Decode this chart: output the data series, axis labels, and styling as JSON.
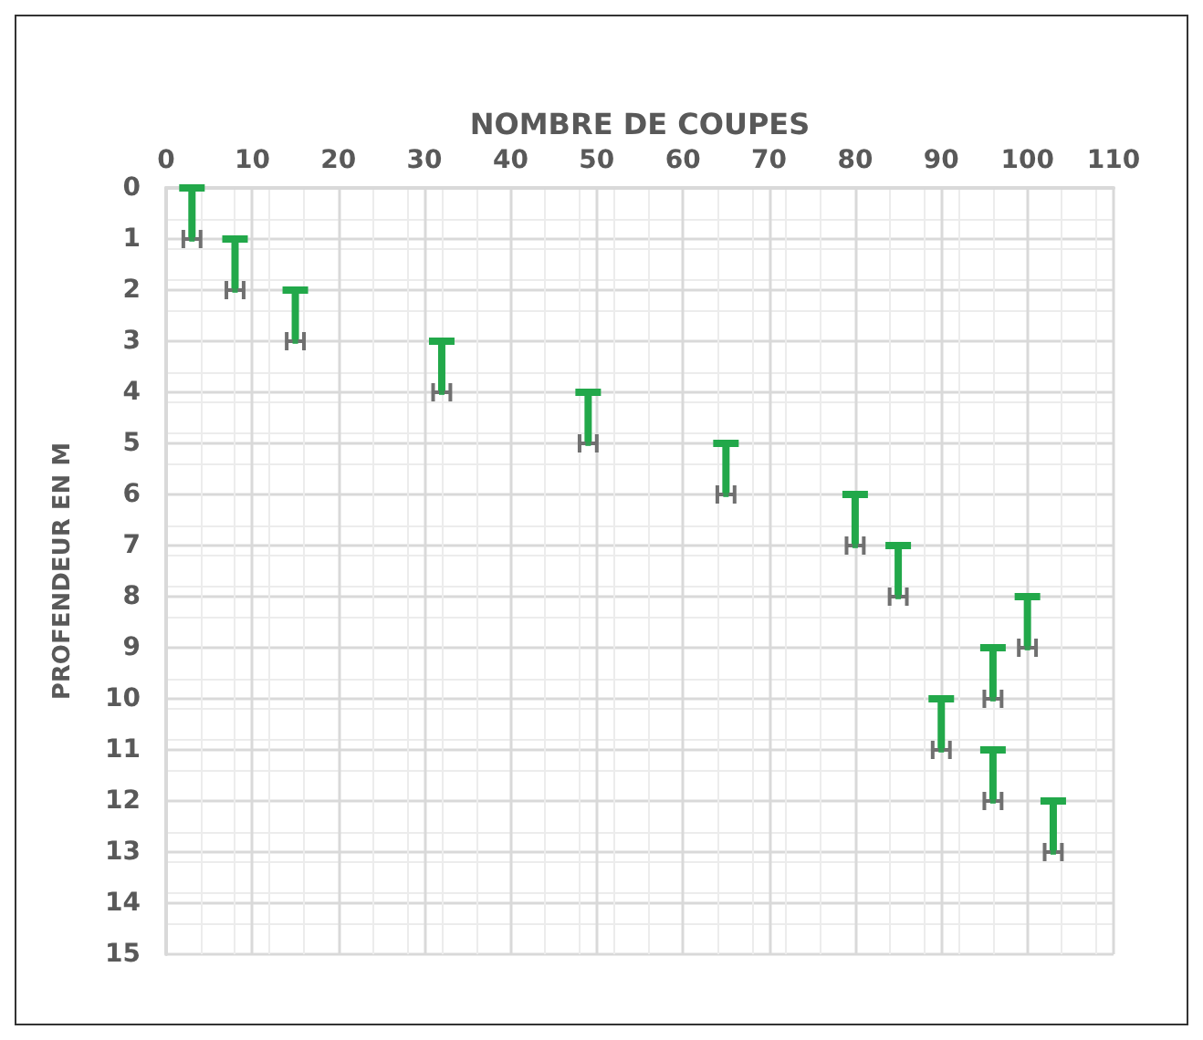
{
  "chart_data": {
    "type": "scatter",
    "xlabel": "NOMBRE DE COUPES",
    "ylabel": "PROFENDEUR EN M",
    "x": [
      3,
      8,
      15,
      32,
      49,
      65,
      80,
      85,
      100,
      96,
      90,
      96,
      103
    ],
    "series": [
      {
        "color": "#22a84a",
        "values": [
          1,
          2,
          3,
          4,
          5,
          6,
          7,
          8,
          9,
          10,
          11,
          12,
          13
        ],
        "errors": [
          [
            0,
            1
          ],
          [
            1,
            2
          ],
          [
            2,
            3
          ],
          [
            3,
            4
          ],
          [
            4,
            5
          ],
          [
            5,
            6
          ],
          [
            6,
            7
          ],
          [
            7,
            8
          ],
          [
            8,
            9
          ],
          [
            9,
            10
          ],
          [
            10,
            11
          ],
          [
            11,
            12
          ],
          [
            12,
            13
          ]
        ],
        "xerrors": [
          1,
          1,
          1,
          1,
          1,
          1,
          1,
          1,
          1,
          1,
          1,
          1,
          1
        ]
      }
    ],
    "xlim": [
      0,
      110
    ],
    "xticks": [
      0,
      10,
      20,
      30,
      40,
      50,
      60,
      70,
      80,
      90,
      100,
      110
    ],
    "ylim": [
      15,
      0
    ],
    "yticks": [
      0,
      1,
      2,
      3,
      4,
      5,
      6,
      7,
      8,
      9,
      10,
      11,
      12,
      13,
      14,
      15
    ],
    "grid": true
  }
}
